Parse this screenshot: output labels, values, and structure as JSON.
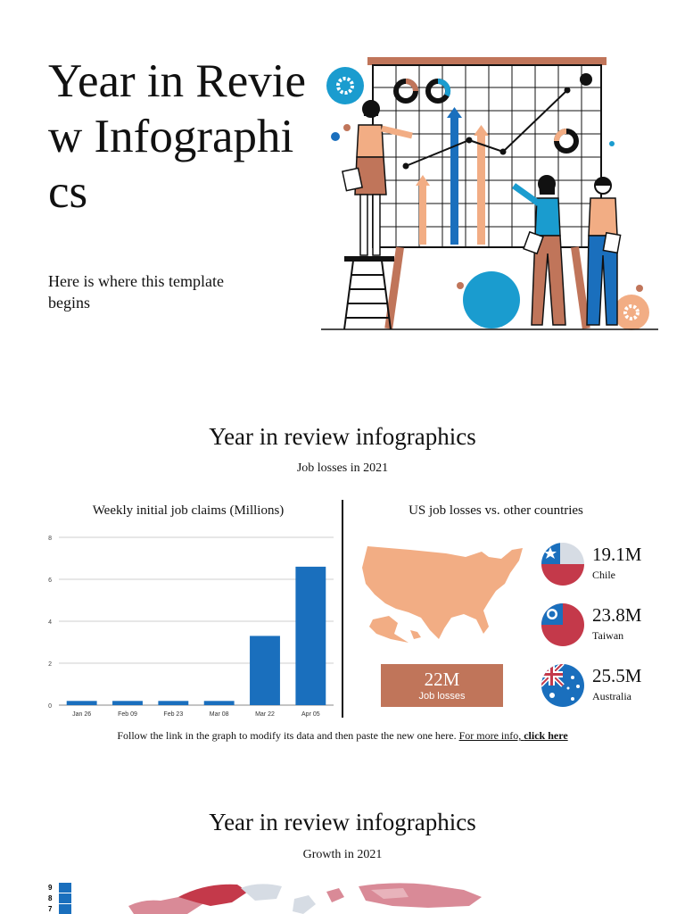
{
  "hero": {
    "title": "Year in Review Infographics",
    "subtitle": "Here is where this template begins"
  },
  "section_jobs": {
    "title": "Year in review infographics",
    "subtitle": "Job losses in 2021",
    "chart_title": "Weekly initial job claims (Millions)",
    "countries_title": "US job losses vs. other countries",
    "us_value": "22M",
    "us_label": "Job losses",
    "countries": [
      {
        "value": "19.1M",
        "name": "Chile"
      },
      {
        "value": "23.8M",
        "name": "Taiwan"
      },
      {
        "value": "25.5M",
        "name": "Australia"
      }
    ],
    "note_text": "Follow the link in the graph to modify its data and then paste the new one here.",
    "note_link_prefix": "For more info, ",
    "note_link_bold": "click here"
  },
  "section_growth": {
    "title": "Year in review infographics",
    "subtitle": "Growth in 2021",
    "scale_labels": [
      "9",
      "8",
      "7"
    ]
  },
  "colors": {
    "bar": "#1a6fbd",
    "peach": "#f2ad84",
    "rust": "#c0755a",
    "sky": "#1a9ccf",
    "flag_red": "#c4394a"
  },
  "chart_data": {
    "type": "bar",
    "categories": [
      "Jan 26",
      "Feb 09",
      "Feb 23",
      "Mar 08",
      "Mar 22",
      "Apr 05"
    ],
    "values": [
      0.2,
      0.2,
      0.2,
      0.2,
      3.3,
      6.6
    ],
    "title": "Weekly initial job claims (Millions)",
    "ylim": [
      0,
      8
    ],
    "yticks": [
      0,
      2,
      4,
      6,
      8
    ],
    "grid": true
  }
}
